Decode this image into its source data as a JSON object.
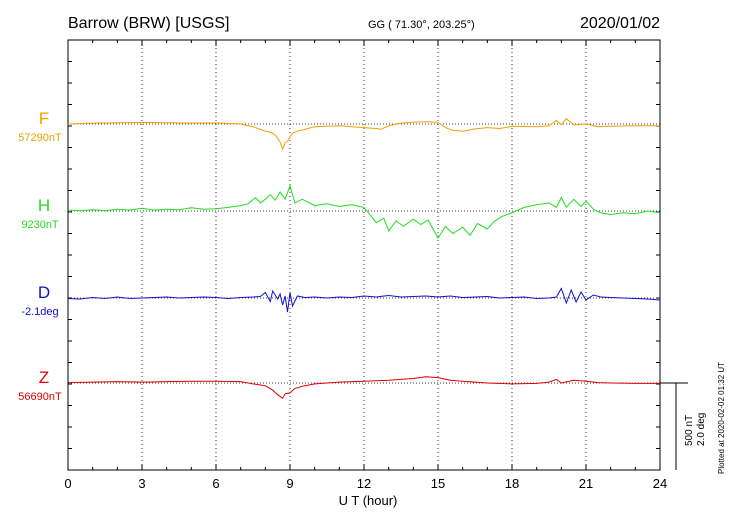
{
  "header": {
    "station": "Barrow (BRW)  [USGS]",
    "coords": "GG ( 71.30°, 203.25°)",
    "date": "2020/01/02"
  },
  "footer": {
    "plotted": "Plotted at 2020-02-02 01:32 UT"
  },
  "scale": {
    "nt": "500 nT",
    "deg": "2.0 deg"
  },
  "chart_data": {
    "type": "line",
    "xlabel": "U T (hour)",
    "x_ticks": [
      "0",
      "3",
      "6",
      "9",
      "12",
      "15",
      "18",
      "21",
      "24"
    ],
    "xlim": [
      0,
      24
    ],
    "grid": true,
    "series": [
      {
        "name": "F",
        "baseline_label": "57290nT",
        "color": "#f0a000",
        "x": [
          0,
          1,
          2,
          3,
          4,
          5,
          6,
          7,
          7.5,
          7.8,
          8.0,
          8.2,
          8.4,
          8.5,
          8.6,
          8.7,
          8.8,
          8.9,
          9.0,
          9.1,
          9.3,
          9.6,
          10,
          11,
          12,
          12.5,
          12.7,
          12.8,
          13,
          13.5,
          14,
          14.5,
          15,
          15.3,
          15.6,
          16,
          16.5,
          17,
          17.5,
          18,
          19,
          19.5,
          19.8,
          20,
          20.2,
          20.5,
          21,
          21.5,
          22,
          23,
          24
        ],
        "values": [
          0,
          10,
          15,
          18,
          15,
          10,
          12,
          0,
          -30,
          -60,
          -80,
          -90,
          -120,
          -160,
          -200,
          -280,
          -210,
          -190,
          -140,
          -100,
          -80,
          -60,
          -30,
          -20,
          -40,
          -50,
          -60,
          -45,
          -20,
          10,
          20,
          25,
          20,
          -40,
          -70,
          -80,
          -55,
          -40,
          -50,
          -25,
          -30,
          -20,
          40,
          -10,
          60,
          -10,
          0,
          -30,
          -25,
          -20,
          -20
        ]
      },
      {
        "name": "H",
        "baseline_label": "9230nT",
        "color": "#22dd22",
        "x": [
          0,
          0.5,
          1,
          1.5,
          2,
          2.5,
          3,
          3.5,
          4,
          4.5,
          5,
          5.5,
          6,
          6.5,
          7,
          7.3,
          7.6,
          7.8,
          8.0,
          8.2,
          8.4,
          8.6,
          8.8,
          9.0,
          9.2,
          9.5,
          10,
          10.5,
          11,
          11.5,
          12,
          12.3,
          12.5,
          12.8,
          13,
          13.3,
          13.6,
          14,
          14.3,
          14.6,
          15,
          15.3,
          15.6,
          16,
          16.3,
          16.6,
          17,
          17.3,
          17.6,
          18,
          18.5,
          19,
          19.5,
          19.8,
          20,
          20.2,
          20.5,
          20.8,
          21,
          21.3,
          21.6,
          22,
          22.5,
          23,
          23.5,
          24
        ],
        "values": [
          10,
          5,
          15,
          5,
          20,
          10,
          30,
          10,
          20,
          15,
          35,
          20,
          25,
          40,
          60,
          80,
          150,
          90,
          130,
          180,
          120,
          210,
          130,
          280,
          90,
          130,
          60,
          80,
          50,
          70,
          40,
          -60,
          -130,
          -80,
          -220,
          -110,
          -170,
          -90,
          -150,
          -100,
          -300,
          -170,
          -250,
          -180,
          -270,
          -140,
          -200,
          -110,
          -60,
          -20,
          40,
          70,
          90,
          40,
          150,
          40,
          130,
          50,
          110,
          20,
          -20,
          -40,
          -20,
          -30,
          0,
          -20
        ]
      },
      {
        "name": "D",
        "baseline_label": "-2.1deg",
        "color": "#1010cc",
        "x": [
          0,
          0.5,
          1,
          1.5,
          2,
          2.5,
          3,
          3.5,
          4,
          4.5,
          5,
          5.5,
          6,
          6.5,
          7,
          7.5,
          7.8,
          8.0,
          8.2,
          8.3,
          8.5,
          8.6,
          8.7,
          8.8,
          8.9,
          9.0,
          9.1,
          9.3,
          9.6,
          10,
          10.5,
          11,
          11.5,
          12,
          12.5,
          13,
          13.5,
          14,
          14.5,
          15,
          15.5,
          16,
          16.5,
          17,
          17.5,
          18,
          18.5,
          19,
          19.5,
          19.8,
          20,
          20.2,
          20.4,
          20.6,
          20.8,
          21,
          21.3,
          21.6,
          22,
          22.5,
          23,
          23.5,
          24
        ],
        "values": [
          -0.05,
          -0.1,
          0.05,
          -0.05,
          0.1,
          -0.05,
          0,
          0.05,
          0.1,
          0,
          0.05,
          0.1,
          0.05,
          -0.05,
          0.05,
          0.1,
          0.15,
          0.55,
          -0.35,
          0.7,
          -0.1,
          0.4,
          -0.7,
          0.2,
          -1.4,
          0.55,
          -0.8,
          0.2,
          0.05,
          0.1,
          0,
          0.1,
          0.05,
          0.2,
          0.1,
          0.25,
          0.1,
          0.15,
          0.2,
          0.1,
          0.2,
          0.05,
          0.1,
          0.15,
          0,
          0.05,
          0.1,
          -0.05,
          0,
          0.1,
          0.95,
          -0.5,
          0.8,
          -0.4,
          0.6,
          -0.2,
          0.3,
          0.1,
          0.05,
          0,
          -0.05,
          -0.1,
          -0.2
        ]
      },
      {
        "name": "Z",
        "baseline_label": "56690nT",
        "color": "#dd0000",
        "x": [
          0,
          1,
          2,
          3,
          4,
          5,
          6,
          7,
          7.5,
          8.0,
          8.3,
          8.5,
          8.7,
          8.8,
          9.0,
          9.2,
          9.6,
          10,
          11,
          12,
          13,
          14,
          14.5,
          15,
          15.5,
          16,
          17,
          18,
          19,
          19.5,
          19.8,
          20,
          20.5,
          21,
          21.5,
          22,
          23,
          24
        ],
        "values": [
          5,
          10,
          15,
          10,
          15,
          20,
          20,
          15,
          -10,
          -30,
          -80,
          -130,
          -170,
          -120,
          -110,
          -60,
          -30,
          -10,
          10,
          20,
          30,
          50,
          70,
          60,
          30,
          20,
          0,
          -10,
          -5,
          10,
          40,
          0,
          30,
          20,
          5,
          0,
          -5,
          -5
        ]
      }
    ]
  }
}
